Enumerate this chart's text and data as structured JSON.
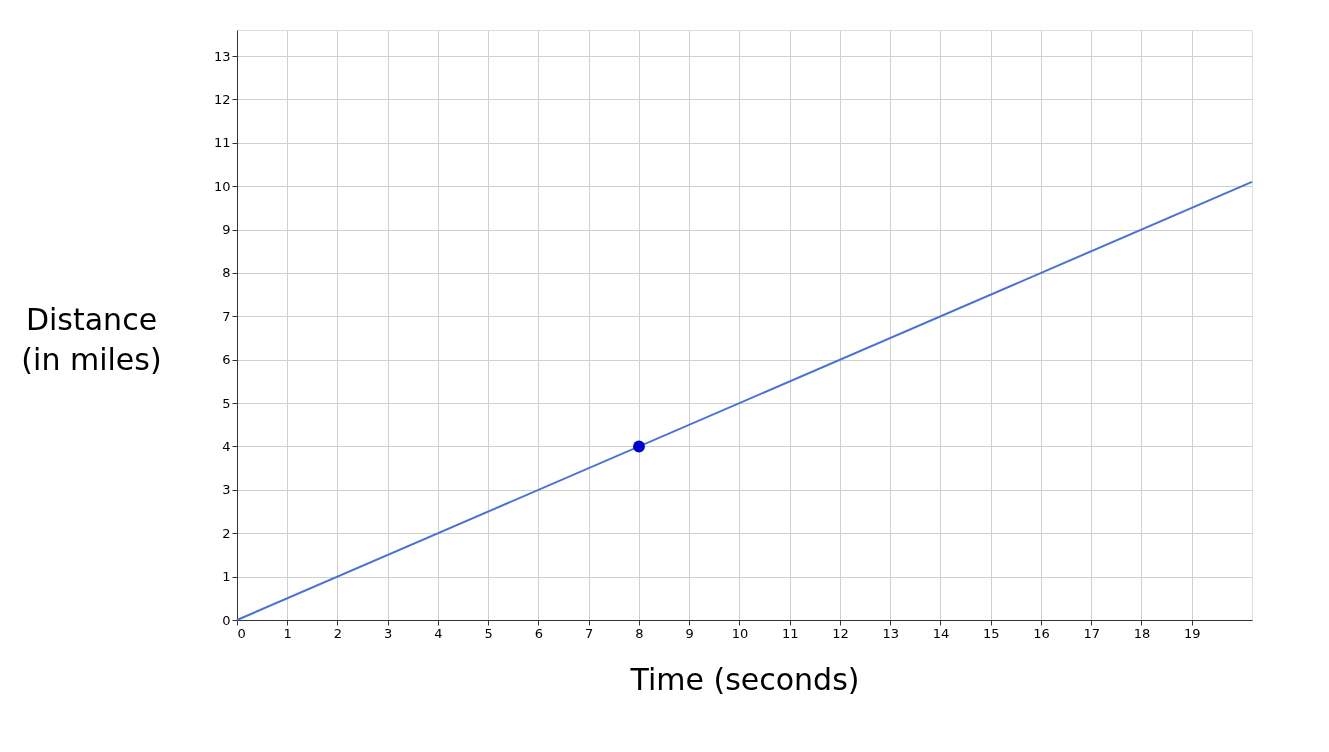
{
  "chart_data": {
    "type": "line",
    "xlabel": "Time (seconds)",
    "ylabel": "Distance\n(in miles)",
    "xlim": [
      0,
      20.2
    ],
    "ylim": [
      0,
      13.6
    ],
    "xticks": [
      0,
      1,
      2,
      3,
      4,
      5,
      6,
      7,
      8,
      9,
      10,
      11,
      12,
      13,
      14,
      15,
      16,
      17,
      18,
      19
    ],
    "yticks": [
      0,
      1,
      2,
      3,
      4,
      5,
      6,
      7,
      8,
      9,
      10,
      11,
      12,
      13
    ],
    "grid": true,
    "marker": "none",
    "line_style": "solid",
    "series": [
      {
        "color": "#4a72d4",
        "x": [
          0,
          20.2
        ],
        "values": [
          0,
          10.1
        ]
      },
      {
        "type": "scatter",
        "color": "#0000cc",
        "x": [
          8
        ],
        "values": [
          4
        ],
        "marker": "circle"
      }
    ]
  }
}
